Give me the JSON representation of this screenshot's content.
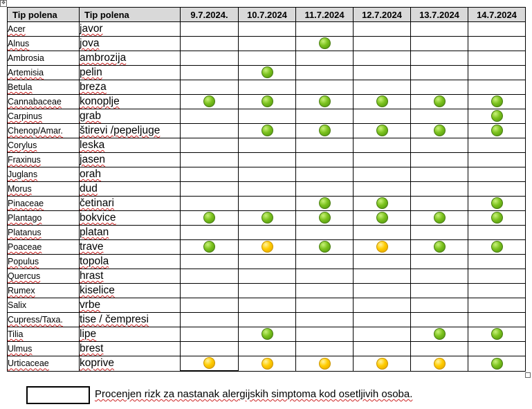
{
  "headers": [
    "Tip polena",
    "Tip polena",
    "9.7.2024.",
    "10.7.2024",
    "11.7.2024",
    "12.7.2024",
    "13.7.2024",
    "14.7.2024"
  ],
  "colors": {
    "green": "#7cc21e",
    "yellow": "#ffcc00",
    "header_bg": "#d9d9d9"
  },
  "rows": [
    {
      "latin": "Acer",
      "local": "javor",
      "risk": [
        "",
        "",
        "",
        "",
        "",
        ""
      ]
    },
    {
      "latin": "Alnus",
      "local": "jova",
      "risk": [
        "",
        "",
        "green",
        "",
        "",
        ""
      ]
    },
    {
      "latin": "Ambrosia",
      "local": "ambrozija",
      "risk": [
        "",
        "",
        "",
        "",
        "",
        ""
      ]
    },
    {
      "latin": "Artemisia",
      "local": "pelin",
      "risk": [
        "",
        "green",
        "",
        "",
        "",
        ""
      ]
    },
    {
      "latin": "Betula",
      "local": "breza",
      "risk": [
        "",
        "",
        "",
        "",
        "",
        ""
      ]
    },
    {
      "latin": "Cannabaceae",
      "local": "konoplje",
      "risk": [
        "green",
        "green",
        "green",
        "green",
        "green",
        "green"
      ]
    },
    {
      "latin": "Carpinus",
      "local": "grab",
      "risk": [
        "",
        "",
        "",
        "",
        "",
        "green"
      ]
    },
    {
      "latin": "Chenop/Amar.",
      "local": "štirevi /pepeljuge",
      "risk": [
        "",
        "green",
        "green",
        "green",
        "green",
        "green"
      ]
    },
    {
      "latin": "Corylus",
      "local": "leska",
      "risk": [
        "",
        "",
        "",
        "",
        "",
        ""
      ]
    },
    {
      "latin": "Fraxinus",
      "local": "jasen",
      "risk": [
        "",
        "",
        "",
        "",
        "",
        ""
      ]
    },
    {
      "latin": "Juglans",
      "local": "orah",
      "risk": [
        "",
        "",
        "",
        "",
        "",
        ""
      ]
    },
    {
      "latin": "Morus",
      "local": "dud",
      "risk": [
        "",
        "",
        "",
        "",
        "",
        ""
      ]
    },
    {
      "latin": "Pinaceae",
      "local": "četinari",
      "risk": [
        "",
        "",
        "green",
        "green",
        "",
        "green"
      ]
    },
    {
      "latin": "Plantago",
      "local": "bokvice",
      "risk": [
        "green",
        "green",
        "green",
        "green",
        "green",
        "green"
      ]
    },
    {
      "latin": "Platanus",
      "local": "platan",
      "risk": [
        "",
        "",
        "",
        "",
        "",
        ""
      ]
    },
    {
      "latin": "Poaceae",
      "local": "trave",
      "risk": [
        "green",
        "yellow",
        "green",
        "yellow",
        "green",
        "green"
      ]
    },
    {
      "latin": "Populus",
      "local": "topola",
      "risk": [
        "",
        "",
        "",
        "",
        "",
        ""
      ]
    },
    {
      "latin": "Quercus",
      "local": "hrast",
      "risk": [
        "",
        "",
        "",
        "",
        "",
        ""
      ]
    },
    {
      "latin": "Rumex",
      "local": "kiselice",
      "risk": [
        "",
        "",
        "",
        "",
        "",
        ""
      ]
    },
    {
      "latin": "Salix",
      "local": "vrbe",
      "risk": [
        "",
        "",
        "",
        "",
        "",
        ""
      ]
    },
    {
      "latin": "Cupress/Taxa.",
      "local": "tise / čempresi",
      "risk": [
        "",
        "",
        "",
        "",
        "",
        ""
      ]
    },
    {
      "latin": "Tilia",
      "local": "lipe",
      "risk": [
        "",
        "green",
        "",
        "",
        "green",
        "green"
      ]
    },
    {
      "latin": "Ulmus",
      "local": "brest",
      "risk": [
        "",
        "",
        "",
        "",
        "",
        ""
      ]
    },
    {
      "latin": "Urticaceae",
      "local": "koprive",
      "risk": [
        "yellow",
        "yellow",
        "yellow",
        "yellow",
        "yellow",
        "green"
      ]
    }
  ],
  "legend": {
    "text": "Procenjen rizk za nastanak alergijskih simptoma kod osetljivih osoba."
  }
}
